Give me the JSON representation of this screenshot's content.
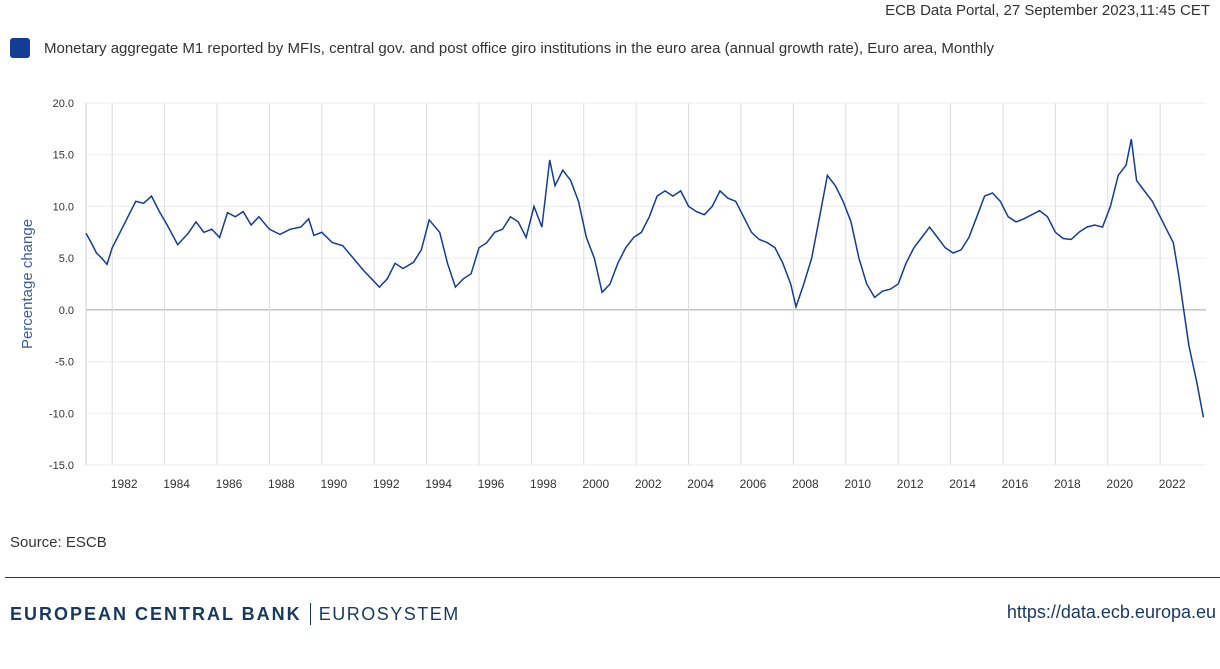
{
  "header": {
    "stamp": "ECB Data Portal, 27 September 2023,11:45 CET"
  },
  "colors": {
    "series": "#143c96",
    "axis_label": "#3e5c9e",
    "footer": "#17385f"
  },
  "chart_data": {
    "type": "line",
    "title": "",
    "ylabel": "Percentage change",
    "ylim": [
      -15,
      20
    ],
    "yticks": [
      "20.0",
      "15.0",
      "10.0",
      "5.0",
      "0.0",
      "-5.0",
      "-10.0",
      "-15.0"
    ],
    "xlim": [
      1981.0,
      2023.75
    ],
    "xticks": [
      "1982",
      "1984",
      "1986",
      "1988",
      "1990",
      "1992",
      "1994",
      "1996",
      "1998",
      "2000",
      "2002",
      "2004",
      "2006",
      "2008",
      "2010",
      "2012",
      "2014",
      "2016",
      "2018",
      "2020",
      "2022"
    ],
    "grid": true,
    "legend_position": "top-left",
    "series": [
      {
        "name": "Monetary aggregate M1 reported by MFIs, central gov. and post office giro institutions in the euro area (annual growth rate), Euro area, Monthly",
        "points": [
          [
            1981.0,
            7.4
          ],
          [
            1981.2,
            6.5
          ],
          [
            1981.4,
            5.5
          ],
          [
            1981.6,
            5.0
          ],
          [
            1981.8,
            4.4
          ],
          [
            1982.0,
            6.0
          ],
          [
            1982.3,
            7.5
          ],
          [
            1982.6,
            9.0
          ],
          [
            1982.9,
            10.5
          ],
          [
            1983.2,
            10.3
          ],
          [
            1983.5,
            11.0
          ],
          [
            1983.8,
            9.5
          ],
          [
            1984.1,
            8.2
          ],
          [
            1984.5,
            6.3
          ],
          [
            1984.9,
            7.4
          ],
          [
            1985.2,
            8.5
          ],
          [
            1985.5,
            7.5
          ],
          [
            1985.8,
            7.8
          ],
          [
            1986.1,
            7.0
          ],
          [
            1986.4,
            9.4
          ],
          [
            1986.7,
            9.0
          ],
          [
            1987.0,
            9.5
          ],
          [
            1987.3,
            8.2
          ],
          [
            1987.6,
            9.0
          ],
          [
            1988.0,
            7.8
          ],
          [
            1988.4,
            7.3
          ],
          [
            1988.8,
            7.8
          ],
          [
            1989.2,
            8.0
          ],
          [
            1989.5,
            8.8
          ],
          [
            1989.7,
            7.2
          ],
          [
            1990.0,
            7.5
          ],
          [
            1990.4,
            6.5
          ],
          [
            1990.8,
            6.2
          ],
          [
            1991.2,
            5.0
          ],
          [
            1991.6,
            3.8
          ],
          [
            1991.9,
            3.0
          ],
          [
            1992.2,
            2.2
          ],
          [
            1992.5,
            3.0
          ],
          [
            1992.8,
            4.5
          ],
          [
            1993.1,
            4.0
          ],
          [
            1993.5,
            4.6
          ],
          [
            1993.8,
            5.8
          ],
          [
            1994.1,
            8.7
          ],
          [
            1994.5,
            7.5
          ],
          [
            1994.8,
            4.5
          ],
          [
            1995.1,
            2.2
          ],
          [
            1995.4,
            3.0
          ],
          [
            1995.7,
            3.5
          ],
          [
            1996.0,
            6.0
          ],
          [
            1996.3,
            6.5
          ],
          [
            1996.6,
            7.5
          ],
          [
            1996.9,
            7.8
          ],
          [
            1997.2,
            9.0
          ],
          [
            1997.5,
            8.5
          ],
          [
            1997.8,
            7.0
          ],
          [
            1998.1,
            10.0
          ],
          [
            1998.4,
            8.0
          ],
          [
            1998.7,
            14.5
          ],
          [
            1998.9,
            12.0
          ],
          [
            1999.2,
            13.5
          ],
          [
            1999.5,
            12.5
          ],
          [
            1999.8,
            10.5
          ],
          [
            2000.1,
            7.0
          ],
          [
            2000.4,
            5.0
          ],
          [
            2000.7,
            1.7
          ],
          [
            2001.0,
            2.5
          ],
          [
            2001.3,
            4.5
          ],
          [
            2001.6,
            6.0
          ],
          [
            2001.9,
            7.0
          ],
          [
            2002.2,
            7.5
          ],
          [
            2002.5,
            9.0
          ],
          [
            2002.8,
            11.0
          ],
          [
            2003.1,
            11.5
          ],
          [
            2003.4,
            11.0
          ],
          [
            2003.7,
            11.5
          ],
          [
            2004.0,
            10.0
          ],
          [
            2004.3,
            9.5
          ],
          [
            2004.6,
            9.2
          ],
          [
            2004.9,
            10.0
          ],
          [
            2005.2,
            11.5
          ],
          [
            2005.5,
            10.8
          ],
          [
            2005.8,
            10.5
          ],
          [
            2006.1,
            9.0
          ],
          [
            2006.4,
            7.5
          ],
          [
            2006.7,
            6.8
          ],
          [
            2007.0,
            6.5
          ],
          [
            2007.3,
            6.0
          ],
          [
            2007.6,
            4.5
          ],
          [
            2007.9,
            2.5
          ],
          [
            2008.1,
            0.3
          ],
          [
            2008.4,
            2.5
          ],
          [
            2008.7,
            5.0
          ],
          [
            2009.0,
            9.0
          ],
          [
            2009.3,
            13.0
          ],
          [
            2009.6,
            12.0
          ],
          [
            2009.9,
            10.5
          ],
          [
            2010.2,
            8.5
          ],
          [
            2010.5,
            5.0
          ],
          [
            2010.8,
            2.5
          ],
          [
            2011.1,
            1.2
          ],
          [
            2011.4,
            1.8
          ],
          [
            2011.7,
            2.0
          ],
          [
            2012.0,
            2.5
          ],
          [
            2012.3,
            4.5
          ],
          [
            2012.6,
            6.0
          ],
          [
            2012.9,
            7.0
          ],
          [
            2013.2,
            8.0
          ],
          [
            2013.5,
            7.0
          ],
          [
            2013.8,
            6.0
          ],
          [
            2014.1,
            5.5
          ],
          [
            2014.4,
            5.8
          ],
          [
            2014.7,
            7.0
          ],
          [
            2015.0,
            9.0
          ],
          [
            2015.3,
            11.0
          ],
          [
            2015.6,
            11.3
          ],
          [
            2015.9,
            10.5
          ],
          [
            2016.2,
            9.0
          ],
          [
            2016.5,
            8.5
          ],
          [
            2016.8,
            8.8
          ],
          [
            2017.1,
            9.2
          ],
          [
            2017.4,
            9.6
          ],
          [
            2017.7,
            9.0
          ],
          [
            2018.0,
            7.5
          ],
          [
            2018.3,
            6.9
          ],
          [
            2018.6,
            6.8
          ],
          [
            2018.9,
            7.5
          ],
          [
            2019.2,
            8.0
          ],
          [
            2019.5,
            8.2
          ],
          [
            2019.8,
            8.0
          ],
          [
            2020.1,
            10.0
          ],
          [
            2020.4,
            13.0
          ],
          [
            2020.7,
            14.0
          ],
          [
            2020.9,
            16.5
          ],
          [
            2021.1,
            12.5
          ],
          [
            2021.4,
            11.5
          ],
          [
            2021.7,
            10.5
          ],
          [
            2022.0,
            9.0
          ],
          [
            2022.3,
            7.5
          ],
          [
            2022.5,
            6.5
          ],
          [
            2022.7,
            3.5
          ],
          [
            2022.9,
            0.0
          ],
          [
            2023.1,
            -3.5
          ],
          [
            2023.4,
            -7.0
          ],
          [
            2023.65,
            -10.4
          ]
        ]
      }
    ]
  },
  "footer": {
    "source": "Source: ESCB",
    "bank": "EUROPEAN CENTRAL BANK",
    "system": "EUROSYSTEM",
    "url": "https://data.ecb.europa.eu"
  }
}
